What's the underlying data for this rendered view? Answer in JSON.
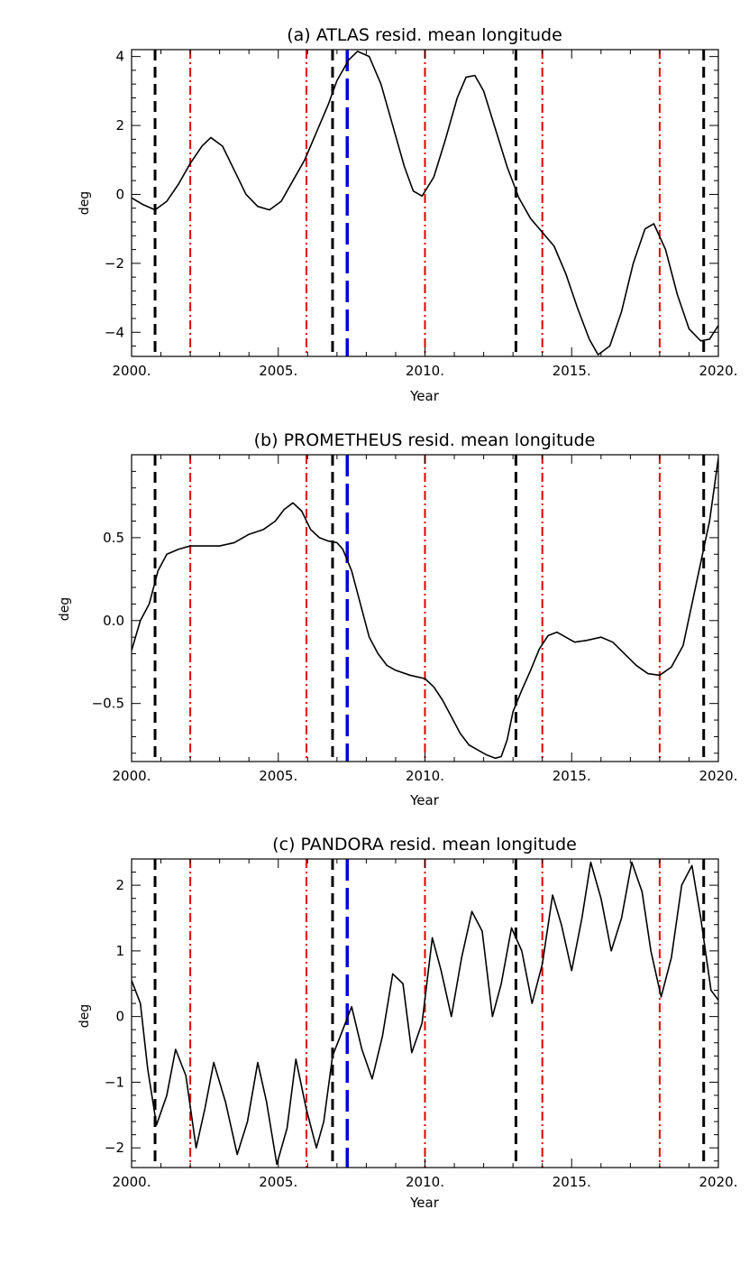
{
  "chart_data": [
    {
      "type": "line",
      "title": "(a) ATLAS resid. mean longitude",
      "xlabel": "Year",
      "ylabel": "deg",
      "xlim": [
        2000,
        2020
      ],
      "ylim": [
        -4.7,
        4.2
      ],
      "xticks": [
        2000,
        2005,
        2010,
        2015,
        2020
      ],
      "xtick_labels": [
        "2000.",
        "2005.",
        "2010.",
        "2015.",
        "2020."
      ],
      "yticks": [
        -4,
        -2,
        0,
        2,
        4
      ],
      "ytick_labels": [
        "−4",
        "−2",
        "0",
        "2",
        "4"
      ],
      "series": [
        {
          "name": "ATLAS",
          "x": [
            2000.0,
            2000.4,
            2000.8,
            2001.2,
            2001.6,
            2002.0,
            2002.4,
            2002.7,
            2003.1,
            2003.5,
            2003.9,
            2004.3,
            2004.7,
            2005.1,
            2005.5,
            2005.9,
            2006.3,
            2006.7,
            2007.0,
            2007.4,
            2007.7,
            2008.1,
            2008.5,
            2008.9,
            2009.3,
            2009.6,
            2009.9,
            2010.3,
            2010.7,
            2011.1,
            2011.4,
            2011.7,
            2012.0,
            2012.4,
            2012.8,
            2013.2,
            2013.6,
            2014.0,
            2014.4,
            2014.8,
            2015.2,
            2015.6,
            2015.9,
            2016.3,
            2016.7,
            2017.1,
            2017.5,
            2017.8,
            2018.2,
            2018.6,
            2019.0,
            2019.4,
            2019.7,
            2020.0
          ],
          "y": [
            -0.1,
            -0.3,
            -0.45,
            -0.2,
            0.3,
            0.9,
            1.4,
            1.65,
            1.4,
            0.7,
            0.0,
            -0.35,
            -0.45,
            -0.2,
            0.4,
            1.0,
            1.8,
            2.6,
            3.3,
            3.9,
            4.15,
            4.0,
            3.2,
            2.0,
            0.8,
            0.1,
            -0.05,
            0.5,
            1.6,
            2.8,
            3.4,
            3.45,
            3.0,
            1.9,
            0.8,
            -0.1,
            -0.7,
            -1.1,
            -1.5,
            -2.3,
            -3.3,
            -4.2,
            -4.65,
            -4.4,
            -3.4,
            -2.0,
            -1.0,
            -0.85,
            -1.6,
            -2.9,
            -3.9,
            -4.25,
            -4.2,
            -3.8
          ]
        }
      ],
      "vlines": [
        {
          "x": 2000.8,
          "style": "black-dash"
        },
        {
          "x": 2002.0,
          "style": "red-dashdot"
        },
        {
          "x": 2005.96,
          "style": "red-dashdot"
        },
        {
          "x": 2006.85,
          "style": "black-dash"
        },
        {
          "x": 2007.35,
          "style": "blue-longdash"
        },
        {
          "x": 2010.0,
          "style": "red-dashdot"
        },
        {
          "x": 2013.1,
          "style": "black-dash"
        },
        {
          "x": 2014.0,
          "style": "red-dashdot"
        },
        {
          "x": 2018.0,
          "style": "red-dashdot"
        },
        {
          "x": 2019.5,
          "style": "black-dash"
        }
      ],
      "colors": {
        "black-dash": "#000000",
        "red-dashdot": "#e00000",
        "blue-longdash": "#0000e0"
      }
    },
    {
      "type": "line",
      "title": "(b) PROMETHEUS resid. mean longitude",
      "xlabel": "Year",
      "ylabel": "deg",
      "xlim": [
        2000,
        2020
      ],
      "ylim": [
        -0.85,
        1.0
      ],
      "xticks": [
        2000,
        2005,
        2010,
        2015,
        2020
      ],
      "xtick_labels": [
        "2000.",
        "2005.",
        "2010.",
        "2015.",
        "2020."
      ],
      "yticks": [
        -0.5,
        0.0,
        0.5
      ],
      "ytick_labels": [
        "−0.5",
        "0.0",
        "0.5"
      ],
      "series": [
        {
          "name": "PROMETHEUS",
          "x": [
            2000.0,
            2000.3,
            2000.6,
            2000.9,
            2001.2,
            2001.6,
            2002.0,
            2002.5,
            2003.0,
            2003.5,
            2004.0,
            2004.5,
            2004.9,
            2005.2,
            2005.5,
            2005.8,
            2006.1,
            2006.4,
            2006.7,
            2007.0,
            2007.2,
            2007.5,
            2007.8,
            2008.1,
            2008.4,
            2008.7,
            2009.0,
            2009.5,
            2010.0,
            2010.3,
            2010.6,
            2010.9,
            2011.2,
            2011.5,
            2011.8,
            2012.1,
            2012.4,
            2012.6,
            2012.8,
            2013.0,
            2013.3,
            2013.6,
            2013.9,
            2014.2,
            2014.5,
            2014.8,
            2015.1,
            2015.5,
            2016.0,
            2016.4,
            2016.8,
            2017.2,
            2017.6,
            2018.0,
            2018.4,
            2018.8,
            2019.1,
            2019.4,
            2019.7,
            2020.0
          ],
          "y": [
            -0.18,
            0.0,
            0.1,
            0.3,
            0.4,
            0.43,
            0.45,
            0.45,
            0.45,
            0.47,
            0.52,
            0.55,
            0.6,
            0.67,
            0.71,
            0.66,
            0.55,
            0.5,
            0.48,
            0.47,
            0.43,
            0.3,
            0.1,
            -0.1,
            -0.2,
            -0.27,
            -0.3,
            -0.33,
            -0.35,
            -0.4,
            -0.48,
            -0.58,
            -0.68,
            -0.75,
            -0.78,
            -0.81,
            -0.83,
            -0.82,
            -0.72,
            -0.55,
            -0.42,
            -0.3,
            -0.17,
            -0.09,
            -0.07,
            -0.1,
            -0.13,
            -0.12,
            -0.1,
            -0.13,
            -0.2,
            -0.27,
            -0.32,
            -0.33,
            -0.28,
            -0.15,
            0.1,
            0.35,
            0.6,
            0.98
          ]
        }
      ],
      "vlines": [
        {
          "x": 2000.8,
          "style": "black-dash"
        },
        {
          "x": 2002.0,
          "style": "red-dashdot"
        },
        {
          "x": 2005.96,
          "style": "red-dashdot"
        },
        {
          "x": 2006.85,
          "style": "black-dash"
        },
        {
          "x": 2007.35,
          "style": "blue-longdash"
        },
        {
          "x": 2010.0,
          "style": "red-dashdot"
        },
        {
          "x": 2013.1,
          "style": "black-dash"
        },
        {
          "x": 2014.0,
          "style": "red-dashdot"
        },
        {
          "x": 2018.0,
          "style": "red-dashdot"
        },
        {
          "x": 2019.5,
          "style": "black-dash"
        }
      ],
      "colors": {
        "black-dash": "#000000",
        "red-dashdot": "#e00000",
        "blue-longdash": "#0000e0"
      }
    },
    {
      "type": "line",
      "title": "(c) PANDORA resid. mean longitude",
      "xlabel": "Year",
      "ylabel": "deg",
      "xlim": [
        2000,
        2020
      ],
      "ylim": [
        -2.3,
        2.4
      ],
      "xticks": [
        2000,
        2005,
        2010,
        2015,
        2020
      ],
      "xtick_labels": [
        "2000.",
        "2005.",
        "2010.",
        "2015.",
        "2020."
      ],
      "yticks": [
        -2,
        -1,
        0,
        1,
        2
      ],
      "ytick_labels": [
        "−2",
        "−1",
        "0",
        "1",
        "2"
      ],
      "series": [
        {
          "name": "PANDORA",
          "x": [
            2000.0,
            2000.3,
            2000.55,
            2000.85,
            2001.2,
            2001.5,
            2001.85,
            2002.2,
            2002.5,
            2002.8,
            2003.2,
            2003.6,
            2003.95,
            2004.3,
            2004.6,
            2004.95,
            2005.3,
            2005.6,
            2005.95,
            2006.3,
            2006.55,
            2006.85,
            2007.2,
            2007.5,
            2007.85,
            2008.2,
            2008.55,
            2008.9,
            2009.25,
            2009.55,
            2009.9,
            2010.25,
            2010.55,
            2010.9,
            2011.25,
            2011.6,
            2011.95,
            2012.3,
            2012.6,
            2012.95,
            2013.3,
            2013.65,
            2014.0,
            2014.35,
            2014.65,
            2015.0,
            2015.35,
            2015.65,
            2016.0,
            2016.35,
            2016.7,
            2017.05,
            2017.4,
            2017.7,
            2018.05,
            2018.4,
            2018.75,
            2019.1,
            2019.4,
            2019.75,
            2020.0
          ],
          "y": [
            0.55,
            0.2,
            -0.8,
            -1.65,
            -1.2,
            -0.5,
            -0.9,
            -2.0,
            -1.4,
            -0.7,
            -1.3,
            -2.1,
            -1.6,
            -0.7,
            -1.3,
            -2.25,
            -1.7,
            -0.65,
            -1.4,
            -2.0,
            -1.6,
            -0.6,
            -0.2,
            0.15,
            -0.5,
            -0.95,
            -0.3,
            0.65,
            0.5,
            -0.55,
            -0.1,
            1.2,
            0.7,
            0.0,
            0.9,
            1.6,
            1.3,
            0.0,
            0.5,
            1.35,
            1.0,
            0.2,
            0.8,
            1.85,
            1.4,
            0.7,
            1.5,
            2.35,
            1.8,
            1.0,
            1.5,
            2.35,
            1.9,
            1.0,
            0.3,
            0.9,
            2.0,
            2.3,
            1.5,
            0.4,
            0.25
          ]
        }
      ],
      "vlines": [
        {
          "x": 2000.8,
          "style": "black-dash"
        },
        {
          "x": 2002.0,
          "style": "red-dashdot"
        },
        {
          "x": 2005.96,
          "style": "red-dashdot"
        },
        {
          "x": 2006.85,
          "style": "black-dash"
        },
        {
          "x": 2007.35,
          "style": "blue-longdash"
        },
        {
          "x": 2010.0,
          "style": "red-dashdot"
        },
        {
          "x": 2013.1,
          "style": "black-dash"
        },
        {
          "x": 2014.0,
          "style": "red-dashdot"
        },
        {
          "x": 2018.0,
          "style": "red-dashdot"
        },
        {
          "x": 2019.5,
          "style": "black-dash"
        }
      ],
      "colors": {
        "black-dash": "#000000",
        "red-dashdot": "#e00000",
        "blue-longdash": "#0000e0"
      }
    }
  ]
}
